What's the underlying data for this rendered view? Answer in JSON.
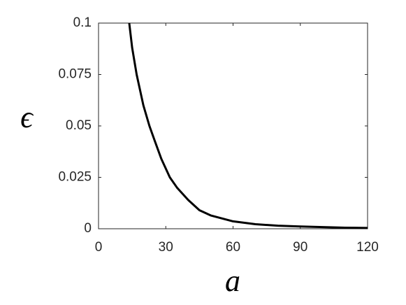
{
  "chart_data": {
    "type": "line",
    "xlabel": "a",
    "ylabel": "ϵ",
    "x": [
      13.7,
      15,
      17,
      20,
      22.7,
      25,
      28,
      31.8,
      35,
      40,
      45,
      50,
      60,
      70,
      80,
      90,
      100,
      110,
      120
    ],
    "series": [
      {
        "color": "#000000",
        "values": [
          0.1,
          0.088,
          0.075,
          0.06,
          0.05,
          0.043,
          0.034,
          0.025,
          0.02,
          0.014,
          0.009,
          0.0065,
          0.0036,
          0.0022,
          0.0015,
          0.0011,
          0.0008,
          0.0005,
          0.0004
        ]
      }
    ],
    "xlim": [
      0,
      120
    ],
    "xticks": [
      0,
      30,
      60,
      90,
      120
    ],
    "ylim": [
      0,
      0.1
    ],
    "yticks": [
      0,
      0.025,
      0.05,
      0.075,
      0.1
    ],
    "grid": false
  }
}
